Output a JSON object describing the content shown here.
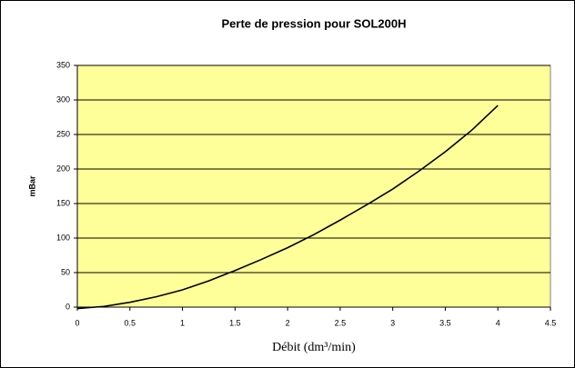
{
  "chart_data": {
    "type": "line",
    "title": "Perte de pression pour SOL200H",
    "x_label": "Débit (dm³/min)",
    "y_label": "mBar",
    "x": [
      0,
      0.25,
      0.5,
      0.75,
      1,
      1.25,
      1.5,
      1.75,
      2,
      2.25,
      2.5,
      2.75,
      3,
      3.25,
      3.5,
      3.75,
      4
    ],
    "series": [
      {
        "name": "Perte de pression",
        "color": "#000000",
        "values": [
          -2,
          1,
          7,
          15,
          25,
          38,
          53,
          69,
          86,
          105,
          126,
          148,
          171,
          197,
          225,
          256,
          292
        ]
      }
    ],
    "xlim": [
      0,
      4.5
    ],
    "xticks": [
      0,
      0.5,
      1,
      1.5,
      2,
      2.5,
      3,
      3.5,
      4,
      4.5
    ],
    "ylim": [
      0,
      350
    ],
    "yticks": [
      0,
      50,
      100,
      150,
      200,
      250,
      300,
      350
    ],
    "grid": true,
    "plot_background": "#ffff99"
  }
}
